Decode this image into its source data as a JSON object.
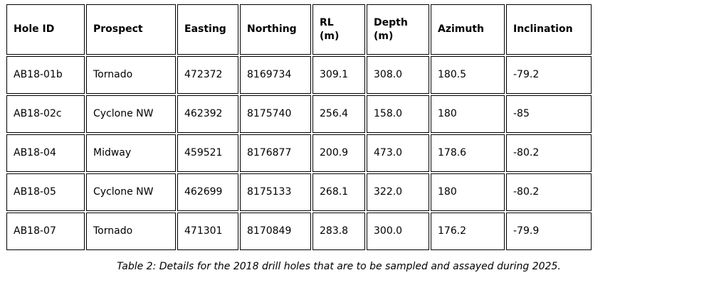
{
  "table": {
    "columns": [
      {
        "label": "Hole ID"
      },
      {
        "label": "Prospect"
      },
      {
        "label": "Easting"
      },
      {
        "label": "Northing"
      },
      {
        "label": "RL\n(m)"
      },
      {
        "label": "Depth\n(m)"
      },
      {
        "label": "Azimuth"
      },
      {
        "label": "Inclination"
      }
    ],
    "rows": [
      [
        "AB18-01b",
        "Tornado",
        "472372",
        "8169734",
        "309.1",
        "308.0",
        "180.5",
        "-79.2"
      ],
      [
        "AB18-02c",
        "Cyclone NW",
        "462392",
        "8175740",
        "256.4",
        "158.0",
        "180",
        "-85"
      ],
      [
        "AB18-04",
        "Midway",
        "459521",
        "8176877",
        "200.9",
        "473.0",
        "178.6",
        "-80.2"
      ],
      [
        "AB18-05",
        "Cyclone NW",
        "462699",
        "8175133",
        "268.1",
        "322.0",
        "180",
        "-80.2"
      ],
      [
        "AB18-07",
        "Tornado",
        "471301",
        "8170849",
        "283.8",
        "300.0",
        "176.2",
        "-79.9"
      ]
    ]
  },
  "caption": "Table 2: Details for the 2018 drill holes that are to be sampled and assayed during 2025.",
  "colors": {
    "border": "#000000",
    "text": "#000000",
    "background": "#ffffff"
  }
}
